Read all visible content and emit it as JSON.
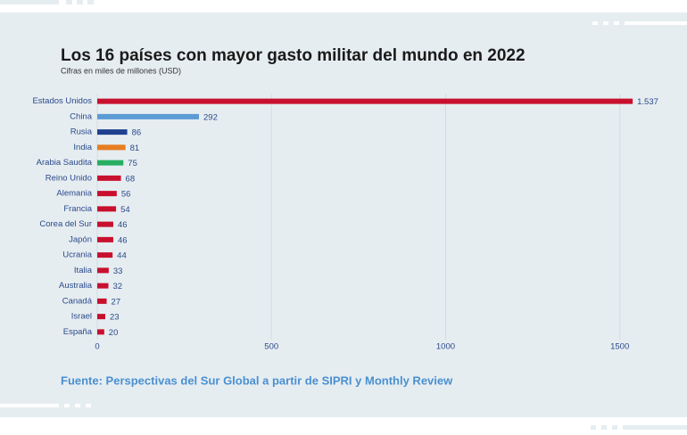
{
  "chart_data": {
    "type": "bar",
    "orientation": "horizontal",
    "title": "Los 16 países con mayor gasto militar del mundo en 2022",
    "subtitle": "Cifras en miles de millones (USD)",
    "categories": [
      "Estados Unidos",
      "China",
      "Rusia",
      "India",
      "Arabia Saudita",
      "Reino Unido",
      "Alemania",
      "Francia",
      "Corea del Sur",
      "Japón",
      "Ucrania",
      "Italia",
      "Australia",
      "Canadá",
      "Israel",
      "España"
    ],
    "values": [
      1537,
      292,
      86,
      81,
      75,
      68,
      56,
      54,
      46,
      46,
      44,
      33,
      32,
      27,
      23,
      20
    ],
    "value_labels": [
      "1.537",
      "292",
      "86",
      "81",
      "75",
      "68",
      "56",
      "54",
      "46",
      "46",
      "44",
      "33",
      "32",
      "27",
      "23",
      "20"
    ],
    "colors": [
      "#c8102e",
      "#5b9bd5",
      "#1f3f8f",
      "#e67e22",
      "#27ae60",
      "#c8102e",
      "#c8102e",
      "#c8102e",
      "#c8102e",
      "#c8102e",
      "#c8102e",
      "#c8102e",
      "#c8102e",
      "#c8102e",
      "#c8102e",
      "#c8102e"
    ],
    "xlim": [
      0,
      1570
    ],
    "xticks": [
      0,
      500,
      1000,
      1500
    ],
    "grid": true,
    "source": "Fuente: Perspectivas del Sur Global a partir de SIPRI y Monthly Review"
  }
}
